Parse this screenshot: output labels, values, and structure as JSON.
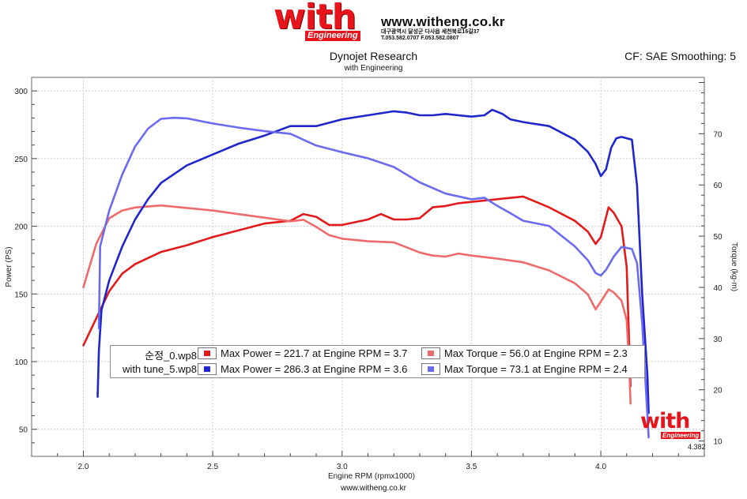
{
  "header": {
    "logo_text": "with",
    "logo_sub": "Engineering",
    "site": "www.witheng.co.kr",
    "address_line": "대구광역시 달성군 다사읍 세천북로16길37",
    "phone_line": "T.053.582.0707 F.053.582.0807",
    "title": "Dynojet Research",
    "subtitle": "with Engineering",
    "cf": "CF: SAE Smoothing: 5"
  },
  "footer": {
    "url": "www.witheng.co.kr",
    "x_max_readout": "4.382"
  },
  "watermark": {
    "text": "with",
    "sub": "Engineering"
  },
  "colors": {
    "run0_power": "#e31a1c",
    "run0_torque": "#ef6b6b",
    "run5_power": "#1e26cc",
    "run5_torque": "#6b6bf0"
  },
  "legend": [
    {
      "name": "순정_0.wp8",
      "power": "Max Power = 221.7 at Engine RPM = 3.7",
      "torque": "Max Torque = 56.0 at Engine RPM = 2.3",
      "power_color": "#e31a1c",
      "torque_color": "#ef6b6b"
    },
    {
      "name": "with tune_5.wp8",
      "power": "Max Power = 286.3 at Engine RPM = 3.6",
      "torque": "Max Torque = 73.1 at Engine RPM = 2.4",
      "power_color": "#1e26cc",
      "torque_color": "#6b6bf0"
    }
  ],
  "chart_data": {
    "type": "line",
    "title": "Dynojet Research",
    "subtitle": "with Engineering",
    "xlabel": "Engine RPM (rpmx1000)",
    "ylabel": "Power (PS)",
    "y2label": "Torque (kg-m)",
    "xlim": [
      1.8,
      4.4
    ],
    "ylim": [
      30,
      310
    ],
    "y2lim": [
      7,
      81
    ],
    "xticks": [
      "2.0",
      "2.5",
      "3.0",
      "3.5",
      "4.0"
    ],
    "yticks": [
      "50",
      "100",
      "150",
      "200",
      "250",
      "300"
    ],
    "y2ticks": [
      "10",
      "20",
      "30",
      "40",
      "50",
      "60",
      "70"
    ],
    "series": [
      {
        "name": "순정_0.wp8 Power",
        "axis": "left",
        "color": "#e31a1c",
        "x": [
          2.0,
          2.05,
          2.1,
          2.15,
          2.2,
          2.3,
          2.4,
          2.5,
          2.6,
          2.7,
          2.8,
          2.85,
          2.9,
          2.95,
          3.0,
          3.1,
          3.15,
          3.2,
          3.25,
          3.3,
          3.35,
          3.4,
          3.45,
          3.5,
          3.6,
          3.7,
          3.8,
          3.9,
          3.95,
          3.98,
          4.0,
          4.03,
          4.05,
          4.08,
          4.1,
          4.11,
          4.115
        ],
        "y": [
          112,
          132,
          152,
          165,
          172,
          181,
          186,
          192,
          197,
          202,
          204,
          209,
          207,
          201,
          201,
          205,
          209,
          205,
          205,
          206,
          214,
          215,
          217,
          218,
          220,
          222,
          214,
          204,
          196,
          187,
          192,
          214,
          210,
          200,
          170,
          110,
          82
        ]
      },
      {
        "name": "순정_0.wp8 Torque",
        "axis": "right",
        "color": "#ef6b6b",
        "x": [
          2.0,
          2.05,
          2.1,
          2.15,
          2.2,
          2.3,
          2.4,
          2.5,
          2.6,
          2.7,
          2.8,
          2.85,
          2.9,
          2.95,
          3.0,
          3.1,
          3.2,
          3.3,
          3.35,
          3.4,
          3.45,
          3.5,
          3.6,
          3.7,
          3.8,
          3.9,
          3.95,
          3.98,
          4.0,
          4.03,
          4.05,
          4.08,
          4.1,
          4.11,
          4.115
        ],
        "y": [
          40,
          48.5,
          53.5,
          55.0,
          55.6,
          56.0,
          55.5,
          55.0,
          54.3,
          53.6,
          52.9,
          53.2,
          51.8,
          50.2,
          49.5,
          49.0,
          48.8,
          46.8,
          46.2,
          46.0,
          46.6,
          46.2,
          45.6,
          44.9,
          43.3,
          40.8,
          38.6,
          35.7,
          37.2,
          39.6,
          39.0,
          37.4,
          33.6,
          24.0,
          17.3
        ]
      },
      {
        "name": "with tune_5.wp8 Power",
        "axis": "left",
        "color": "#1e26cc",
        "x": [
          2.055,
          2.06,
          2.07,
          2.1,
          2.15,
          2.2,
          2.25,
          2.3,
          2.4,
          2.5,
          2.6,
          2.7,
          2.8,
          2.9,
          3.0,
          3.1,
          3.2,
          3.25,
          3.3,
          3.35,
          3.4,
          3.45,
          3.5,
          3.55,
          3.58,
          3.62,
          3.65,
          3.7,
          3.8,
          3.9,
          3.95,
          3.98,
          4.0,
          4.02,
          4.04,
          4.06,
          4.08,
          4.12,
          4.14,
          4.16,
          4.18,
          4.185
        ],
        "y": [
          74,
          108,
          138,
          160,
          185,
          205,
          220,
          232,
          245,
          253,
          261,
          267,
          274,
          274,
          279,
          282,
          285,
          284,
          282,
          282,
          283,
          282,
          281,
          282,
          286,
          283,
          279,
          277,
          274,
          264,
          255,
          246,
          237,
          242,
          258,
          265,
          266,
          264,
          230,
          150,
          90,
          62
        ]
      },
      {
        "name": "with tune_5.wp8 Torque",
        "axis": "right",
        "color": "#6b6bf0",
        "x": [
          2.06,
          2.065,
          2.1,
          2.15,
          2.2,
          2.25,
          2.3,
          2.35,
          2.4,
          2.5,
          2.6,
          2.7,
          2.8,
          2.9,
          3.0,
          3.1,
          3.2,
          3.3,
          3.4,
          3.5,
          3.55,
          3.6,
          3.65,
          3.7,
          3.8,
          3.9,
          3.95,
          3.98,
          4.0,
          4.02,
          4.05,
          4.08,
          4.12,
          4.14,
          4.16,
          4.18,
          4.185
        ],
        "y": [
          32,
          48,
          55.0,
          62.0,
          67.5,
          71.0,
          72.9,
          73.1,
          73.0,
          72.0,
          71.2,
          70.5,
          70.0,
          67.7,
          66.4,
          65.2,
          63.5,
          60.5,
          58.3,
          57.2,
          57.5,
          55.9,
          54.5,
          53.0,
          52.0,
          48.0,
          45.3,
          42.8,
          42.3,
          43.4,
          46.0,
          47.9,
          47.5,
          44.7,
          33.0,
          15.0,
          10.7
        ]
      }
    ]
  }
}
